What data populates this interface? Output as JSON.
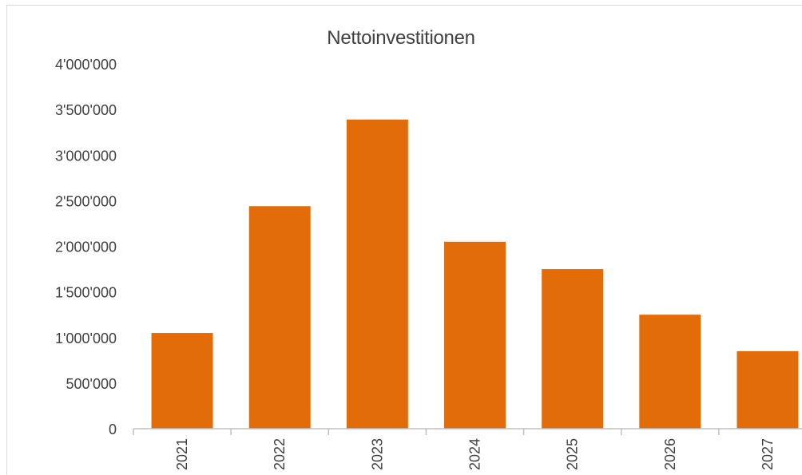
{
  "chart_data": {
    "type": "bar",
    "title": "Nettoinvestitionen",
    "categories": [
      "2021",
      "2022",
      "2023",
      "2024",
      "2025",
      "2026",
      "2027"
    ],
    "values": [
      1050000,
      2440000,
      3390000,
      2050000,
      1750000,
      1250000,
      850000
    ],
    "yticks": [
      "0",
      "500'000",
      "1'000'000",
      "1'500'000",
      "2'000'000",
      "2'500'000",
      "3'000'000",
      "3'500'000",
      "4'000'000"
    ],
    "ylim": [
      0,
      4000000
    ],
    "bar_color": "#e36c0a",
    "grid": false,
    "legend": "none"
  }
}
